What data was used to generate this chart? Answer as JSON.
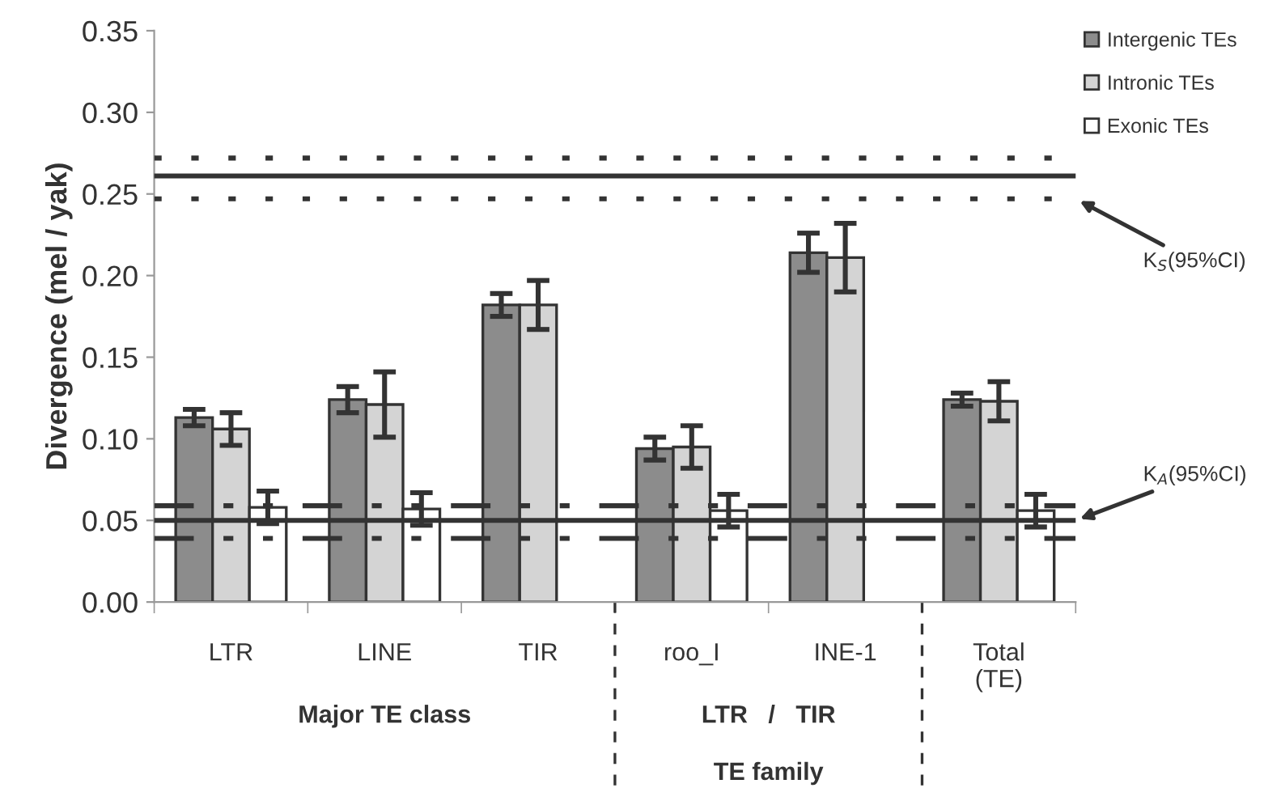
{
  "chart_data": {
    "type": "bar",
    "ylabel": "Divergence (mel / yak)",
    "categories": [
      "LTR",
      "LINE",
      "TIR",
      "roo_I",
      "INE-1",
      "Total\n(TE)"
    ],
    "series": [
      {
        "name": "Intergenic TEs",
        "color": "#8c8c8c",
        "values": [
          0.113,
          0.124,
          0.182,
          0.094,
          0.214,
          0.124
        ],
        "errors": [
          0.005,
          0.008,
          0.007,
          0.007,
          0.012,
          0.004
        ]
      },
      {
        "name": "Intronic TEs",
        "color": "#d4d4d4",
        "values": [
          0.106,
          0.121,
          0.182,
          0.095,
          0.211,
          0.123
        ],
        "errors": [
          0.01,
          0.02,
          0.015,
          0.013,
          0.021,
          0.012
        ]
      },
      {
        "name": "Exonic TEs",
        "color": "#ffffff",
        "values": [
          0.058,
          0.057,
          null,
          0.056,
          null,
          0.056
        ],
        "errors": [
          0.01,
          0.01,
          null,
          0.01,
          null,
          0.01
        ]
      }
    ],
    "ylim": [
      0,
      0.35
    ],
    "yticks": [
      {
        "value": 0,
        "label": "0.00"
      },
      {
        "value": 0.05,
        "label": "0.05"
      },
      {
        "value": 0.1,
        "label": "0.10"
      },
      {
        "value": 0.15,
        "label": "0.15"
      },
      {
        "value": 0.2,
        "label": "0.20"
      },
      {
        "value": 0.25,
        "label": "0.25"
      },
      {
        "value": 0.3,
        "label": "0.30"
      },
      {
        "value": 0.35,
        "label": "0.35"
      }
    ],
    "ref_lines": [
      {
        "axis": "y",
        "value": 0.261,
        "line_style": "solid",
        "color": "#333333"
      },
      {
        "axis": "y",
        "value": 0.272,
        "line_style": "dotted",
        "color": "#333333"
      },
      {
        "axis": "y",
        "value": 0.247,
        "line_style": "dotted",
        "color": "#333333"
      },
      {
        "axis": "y",
        "value": 0.05,
        "line_style": "solid",
        "color": "#333333"
      },
      {
        "axis": "y",
        "value": 0.059,
        "line_style": "dashed",
        "color": "#333333"
      },
      {
        "axis": "y",
        "value": 0.039,
        "line_style": "dashed",
        "color": "#333333"
      }
    ],
    "annotations": [
      "K$_{S}$(95%CI)",
      "K$_{A}$(95%CI)",
      "Major TE class",
      "LTR   /   TIR",
      "TE family"
    ],
    "legend": "top right",
    "grid": false
  }
}
